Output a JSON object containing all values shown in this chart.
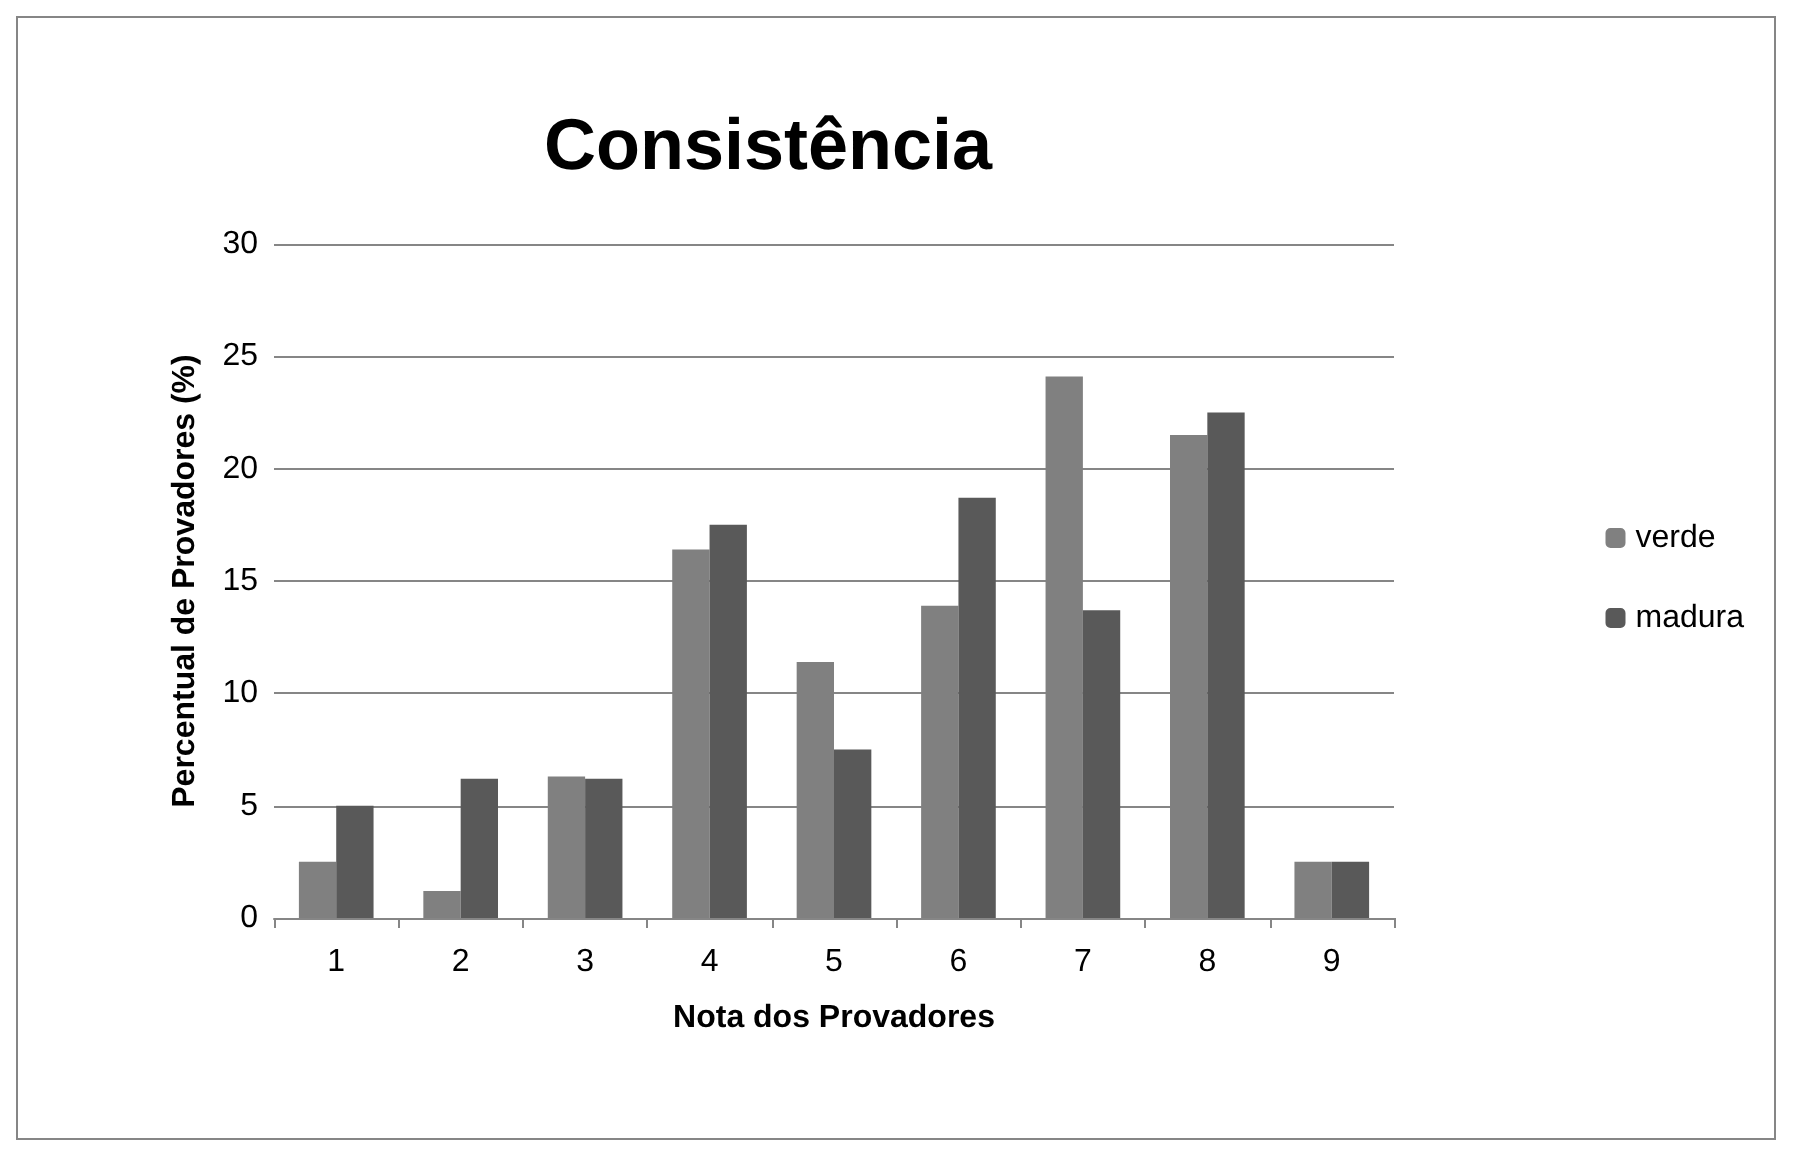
{
  "chart_data": {
    "type": "bar",
    "title": "Consistência",
    "xlabel": "Nota dos Provadores",
    "ylabel": "Percentual de Provadores (%)",
    "categories": [
      "1",
      "2",
      "3",
      "4",
      "5",
      "6",
      "7",
      "8",
      "9"
    ],
    "series": [
      {
        "name": "verde",
        "color": "#808080",
        "values": [
          2.5,
          1.2,
          6.3,
          16.4,
          11.4,
          13.9,
          24.1,
          21.5,
          2.5
        ]
      },
      {
        "name": "madura",
        "color": "#595959",
        "values": [
          5,
          6.2,
          6.2,
          17.5,
          7.5,
          18.7,
          13.7,
          22.5,
          2.5
        ]
      }
    ],
    "ylim": [
      0,
      30
    ],
    "yticks": [
      0,
      5,
      10,
      15,
      20,
      25,
      30
    ],
    "grid": "y",
    "legend": "right"
  }
}
